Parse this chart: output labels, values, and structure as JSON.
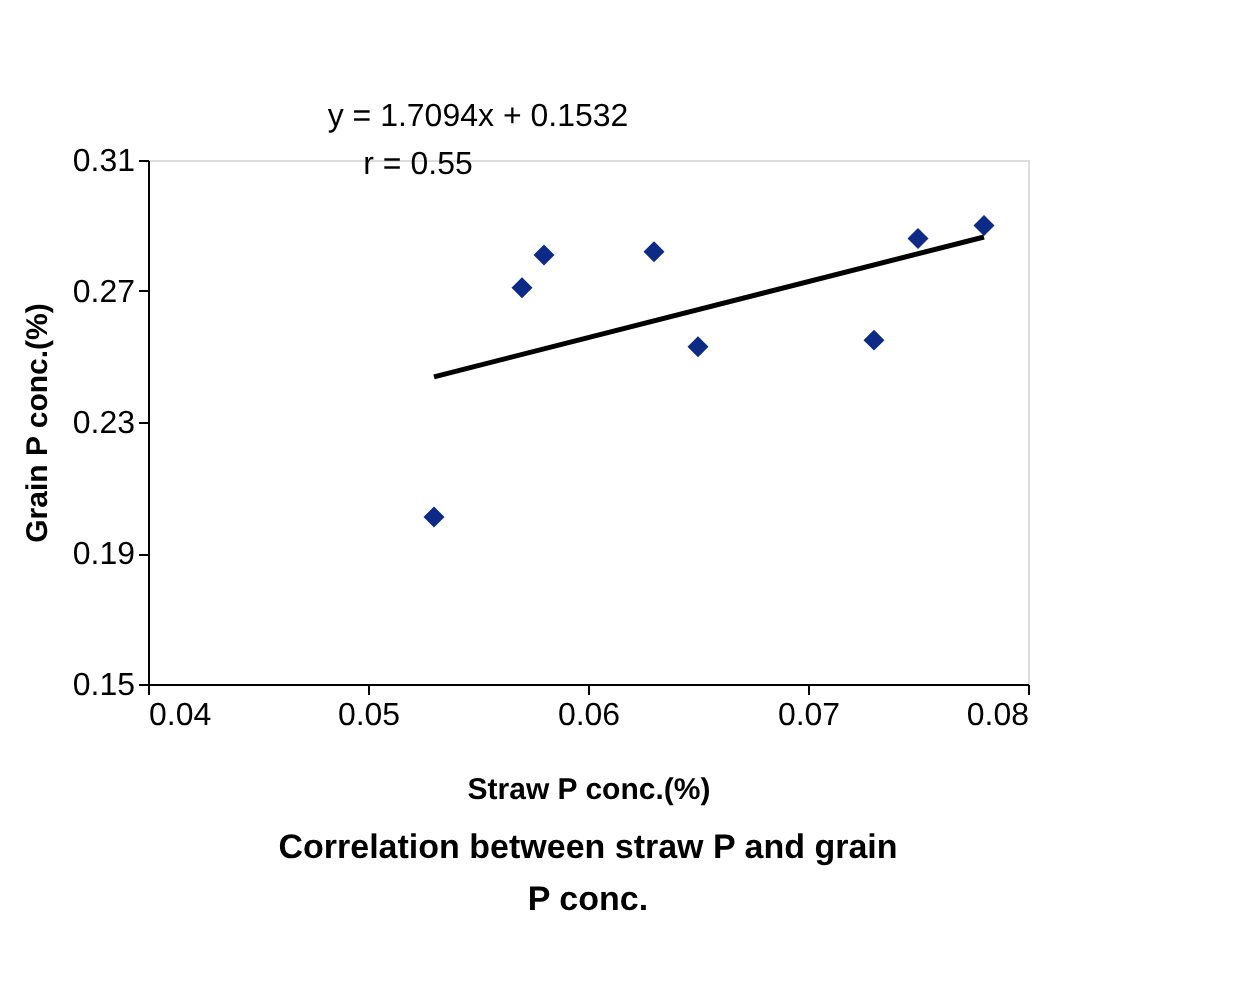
{
  "chart_data": {
    "type": "scatter",
    "title": "Correlation between straw P and grain P conc.",
    "xlabel": "Straw P conc.(%)",
    "ylabel": "Grain P conc.(%)",
    "annotations": [
      "y = 1.7094x + 0.1532",
      "r = 0.55"
    ],
    "xlim": [
      0.04,
      0.08
    ],
    "xticks": [
      0.04,
      0.05,
      0.06,
      0.07,
      0.08
    ],
    "ylim": [
      0.15,
      0.31
    ],
    "yticks": [
      0.15,
      0.19,
      0.23,
      0.27,
      0.31
    ],
    "series": [
      {
        "marker": "diamond",
        "color": "#0d2a86",
        "x": [
          0.053,
          0.057,
          0.058,
          0.063,
          0.065,
          0.073,
          0.075,
          0.078
        ],
        "values": [
          0.201,
          0.271,
          0.281,
          0.282,
          0.253,
          0.255,
          0.286,
          0.29
        ]
      },
      {
        "type": "line",
        "color": "#000000",
        "x": [
          0.053,
          0.078
        ],
        "values": [
          0.2438,
          0.2865
        ]
      }
    ]
  }
}
